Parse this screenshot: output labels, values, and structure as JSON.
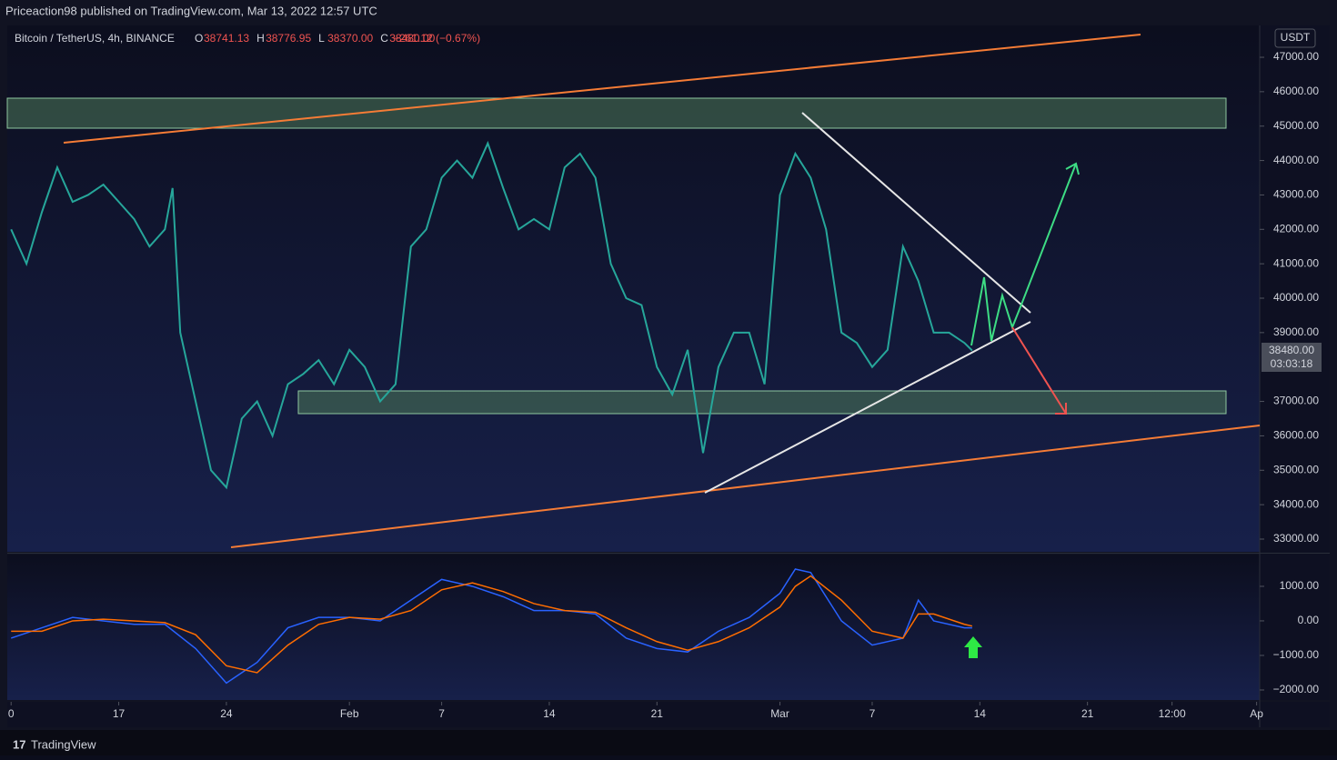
{
  "header": {
    "text": "Priceaction98 published on TradingView.com, Mar 13, 2022 12:57 UTC"
  },
  "legend": {
    "symbol": "Bitcoin / TetherUS, 4h, BINANCE",
    "ohlc": [
      [
        "O",
        "38741.13"
      ],
      [
        "H",
        "38776.95"
      ],
      [
        "L",
        "38370.00"
      ],
      [
        "C",
        "38480.00"
      ]
    ],
    "change": "−261.12 (−0.67%)"
  },
  "footer": {
    "brand": "TradingView"
  },
  "chart_data": {
    "type": "line",
    "currency": "USDT",
    "last_price_label": "38480.00",
    "countdown": "03:03:18",
    "xlim": [
      -0.25,
      81.2
    ],
    "xticks": [
      {
        "value": 0,
        "label": "0"
      },
      {
        "value": 7,
        "label": "17"
      },
      {
        "value": 14,
        "label": "24"
      },
      {
        "value": 22,
        "label": "Feb"
      },
      {
        "value": 28,
        "label": "7"
      },
      {
        "value": 35,
        "label": "14"
      },
      {
        "value": 42,
        "label": "21"
      },
      {
        "value": 50,
        "label": "Mar"
      },
      {
        "value": 56,
        "label": "7"
      },
      {
        "value": 63,
        "label": "14"
      },
      {
        "value": 70,
        "label": "21"
      },
      {
        "value": 75.5,
        "label": "12:00"
      },
      {
        "value": 81,
        "label": "Ap"
      }
    ],
    "ylim": [
      32630,
      47925
    ],
    "yticks": [
      {
        "value": 47000,
        "label": "47000.00"
      },
      {
        "value": 46000,
        "label": "46000.00"
      },
      {
        "value": 45000,
        "label": "45000.00"
      },
      {
        "value": 44000,
        "label": "44000.00"
      },
      {
        "value": 43000,
        "label": "43000.00"
      },
      {
        "value": 42000,
        "label": "42000.00"
      },
      {
        "value": 41000,
        "label": "41000.00"
      },
      {
        "value": 40000,
        "label": "40000.00"
      },
      {
        "value": 39000,
        "label": "39000.00"
      },
      {
        "value": 37000,
        "label": "37000.00"
      },
      {
        "value": 36000,
        "label": "36000.00"
      },
      {
        "value": 35000,
        "label": "35000.00"
      },
      {
        "value": 34000,
        "label": "34000.00"
      },
      {
        "value": 33000,
        "label": "33000.00"
      }
    ],
    "series": [
      {
        "name": "close",
        "color": "#26a69a",
        "x": [
          0,
          1,
          2,
          3,
          4,
          5,
          6,
          7,
          8,
          9,
          10,
          10.5,
          11,
          12,
          13,
          14,
          15,
          16,
          17,
          18,
          19,
          20,
          21,
          22,
          23,
          24,
          25,
          26,
          27,
          28,
          29,
          30,
          31,
          32,
          33,
          34,
          35,
          36,
          37,
          38,
          39,
          40,
          41,
          42,
          43,
          44,
          45,
          46,
          47,
          48,
          49,
          50,
          51,
          52,
          53,
          54,
          55,
          56,
          57,
          58,
          59,
          60,
          61,
          62,
          62.5
        ],
        "values": [
          42000,
          41000,
          42500,
          43800,
          42800,
          43000,
          43300,
          42800,
          42300,
          41500,
          42000,
          43200,
          39000,
          37000,
          35000,
          34500,
          36500,
          37000,
          36000,
          37500,
          37800,
          38200,
          37500,
          38500,
          38000,
          37000,
          37500,
          41500,
          42000,
          43500,
          44000,
          43500,
          44500,
          43200,
          42000,
          42300,
          42000,
          43800,
          44200,
          43500,
          41000,
          40000,
          39800,
          38000,
          37200,
          38500,
          35500,
          38000,
          39000,
          39000,
          37500,
          43000,
          44200,
          43500,
          42000,
          39000,
          38700,
          38000,
          38500,
          41500,
          40500,
          39000,
          39000,
          38700,
          38480
        ]
      }
    ],
    "macd": {
      "ylim": [
        -2290,
        1920
      ],
      "yticks": [
        {
          "value": 1000,
          "label": "1000.00"
        },
        {
          "value": 0,
          "label": "0.00"
        },
        {
          "value": -1000,
          "label": "−1000.00"
        },
        {
          "value": -2000,
          "label": "−2000.00"
        }
      ],
      "x": [
        0,
        2,
        4,
        6,
        8,
        10,
        12,
        14,
        16,
        18,
        20,
        22,
        24,
        26,
        28,
        30,
        32,
        34,
        36,
        38,
        40,
        42,
        44,
        46,
        48,
        50,
        51,
        52,
        54,
        56,
        58,
        59,
        60,
        62,
        62.5
      ],
      "series": [
        {
          "name": "MACD",
          "color": "#2962ff",
          "values": [
            -500,
            -200,
            100,
            0,
            -100,
            -100,
            -800,
            -1800,
            -1200,
            -200,
            100,
            100,
            0,
            600,
            1200,
            1000,
            700,
            300,
            300,
            200,
            -500,
            -800,
            -900,
            -300,
            100,
            800,
            1500,
            1400,
            0,
            -700,
            -500,
            600,
            0,
            -200,
            -200
          ]
        },
        {
          "name": "Signal",
          "color": "#ff6d00",
          "values": [
            -300,
            -300,
            0,
            50,
            0,
            -50,
            -400,
            -1300,
            -1500,
            -700,
            -100,
            100,
            50,
            300,
            900,
            1100,
            850,
            500,
            300,
            250,
            -200,
            -600,
            -850,
            -600,
            -200,
            400,
            1000,
            1300,
            600,
            -300,
            -500,
            200,
            200,
            -100,
            -150
          ]
        }
      ]
    }
  }
}
